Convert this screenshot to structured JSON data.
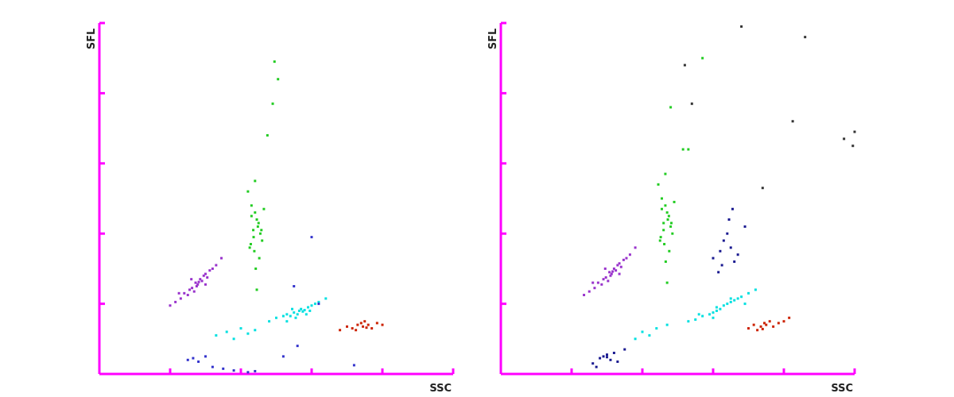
{
  "chart_data": [
    {
      "type": "scatter",
      "x_label": "SSC",
      "y_label": "SFL",
      "axis_color": "#ff00ff",
      "xlim": [
        0,
        1000
      ],
      "ylim": [
        0,
        1000
      ],
      "xticks": [
        200,
        400,
        600,
        800
      ],
      "yticks": [
        200,
        400,
        600,
        800
      ],
      "series": [
        {
          "color": "#9933cc",
          "x": [
            200,
            215,
            230,
            240,
            250,
            255,
            262,
            268,
            272,
            278,
            281,
            285,
            290,
            295,
            300,
            305,
            312,
            320,
            330,
            345,
            225,
            260,
            300,
            275
          ],
          "values": [
            195,
            205,
            215,
            230,
            225,
            240,
            245,
            235,
            260,
            255,
            262,
            270,
            265,
            280,
            285,
            275,
            295,
            300,
            310,
            330,
            230,
            270,
            255,
            250
          ]
        },
        {
          "color": "#22cc22",
          "x": [
            420,
            430,
            440,
            445,
            450,
            435,
            455,
            460,
            425,
            438,
            448,
            442,
            452,
            430,
            465,
            440,
            445,
            436,
            458,
            428,
            495,
            490,
            475,
            505
          ],
          "values": [
            520,
            480,
            460,
            440,
            430,
            410,
            400,
            380,
            360,
            350,
            420,
            300,
            330,
            450,
            470,
            550,
            240,
            390,
            410,
            370,
            890,
            770,
            680,
            840
          ]
        },
        {
          "color": "#00e0e0",
          "x": [
            480,
            500,
            520,
            530,
            540,
            550,
            560,
            565,
            570,
            575,
            580,
            590,
            600,
            610,
            620,
            640,
            555,
            545,
            585,
            530,
            595,
            330,
            360,
            380,
            400,
            420,
            440
          ],
          "values": [
            150,
            160,
            165,
            170,
            165,
            175,
            170,
            180,
            185,
            178,
            182,
            190,
            195,
            200,
            205,
            215,
            160,
            185,
            170,
            150,
            180,
            110,
            120,
            100,
            130,
            115,
            125
          ]
        },
        {
          "color": "#cc2200",
          "x": [
            680,
            700,
            715,
            730,
            740,
            745,
            750,
            760,
            770,
            785,
            800,
            725,
            755
          ],
          "values": [
            125,
            135,
            130,
            140,
            145,
            135,
            150,
            140,
            130,
            145,
            140,
            125,
            132
          ]
        },
        {
          "color": "#3333cc",
          "x": [
            250,
            265,
            280,
            300,
            320,
            350,
            380,
            420,
            440,
            520,
            560,
            620,
            720,
            600,
            550
          ],
          "values": [
            40,
            45,
            35,
            50,
            20,
            15,
            10,
            5,
            8,
            50,
            80,
            200,
            25,
            390,
            250
          ]
        }
      ]
    },
    {
      "type": "scatter",
      "x_label": "SSC",
      "y_label": "SFL",
      "axis_color": "#ff00ff",
      "xlim": [
        0,
        1000
      ],
      "ylim": [
        0,
        1000
      ],
      "xticks": [
        200,
        400,
        600,
        800
      ],
      "yticks": [
        200,
        400,
        600,
        800
      ],
      "series": [
        {
          "color": "#9933cc",
          "x": [
            235,
            250,
            265,
            275,
            285,
            290,
            297,
            303,
            307,
            313,
            316,
            320,
            325,
            330,
            335,
            340,
            347,
            355,
            365,
            380,
            260,
            295,
            335,
            310
          ],
          "values": [
            225,
            235,
            245,
            260,
            255,
            270,
            275,
            265,
            290,
            285,
            292,
            300,
            295,
            310,
            315,
            305,
            325,
            330,
            340,
            360,
            260,
            300,
            285,
            280
          ]
        },
        {
          "color": "#22cc22",
          "x": [
            445,
            455,
            465,
            470,
            475,
            460,
            480,
            485,
            450,
            462,
            472,
            466,
            476,
            455,
            490,
            465,
            470,
            460,
            482,
            452,
            480,
            515,
            530,
            570
          ],
          "values": [
            540,
            500,
            480,
            460,
            450,
            430,
            420,
            400,
            380,
            370,
            440,
            320,
            350,
            470,
            490,
            570,
            260,
            410,
            430,
            390,
            760,
            640,
            640,
            900
          ]
        },
        {
          "color": "#1a1a90",
          "x": [
            600,
            620,
            630,
            640,
            650,
            660,
            670,
            615,
            645,
            655,
            625,
            690,
            260,
            280,
            290,
            300,
            310,
            320,
            330,
            300,
            350,
            270
          ],
          "values": [
            330,
            350,
            380,
            400,
            360,
            320,
            340,
            290,
            440,
            470,
            310,
            420,
            30,
            45,
            50,
            55,
            40,
            60,
            35,
            48,
            70,
            20
          ]
        },
        {
          "color": "#00e0e0",
          "x": [
            530,
            550,
            570,
            590,
            600,
            610,
            620,
            630,
            640,
            650,
            660,
            670,
            680,
            700,
            720,
            610,
            600,
            650,
            560,
            690,
            380,
            400,
            420,
            440,
            470
          ],
          "values": [
            150,
            155,
            165,
            170,
            175,
            180,
            185,
            195,
            200,
            205,
            210,
            215,
            220,
            230,
            240,
            190,
            160,
            215,
            170,
            200,
            100,
            120,
            110,
            130,
            140
          ]
        },
        {
          "color": "#cc2200",
          "x": [
            700,
            715,
            725,
            735,
            745,
            750,
            760,
            770,
            785,
            800,
            815,
            740
          ],
          "values": [
            130,
            140,
            125,
            135,
            145,
            140,
            150,
            135,
            145,
            150,
            160,
            128
          ]
        },
        {
          "color": "#333333",
          "x": [
            680,
            860,
            1000,
            970,
            995,
            825,
            740,
            520,
            540
          ],
          "values": [
            990,
            960,
            690,
            670,
            650,
            720,
            530,
            880,
            770
          ]
        }
      ]
    }
  ]
}
